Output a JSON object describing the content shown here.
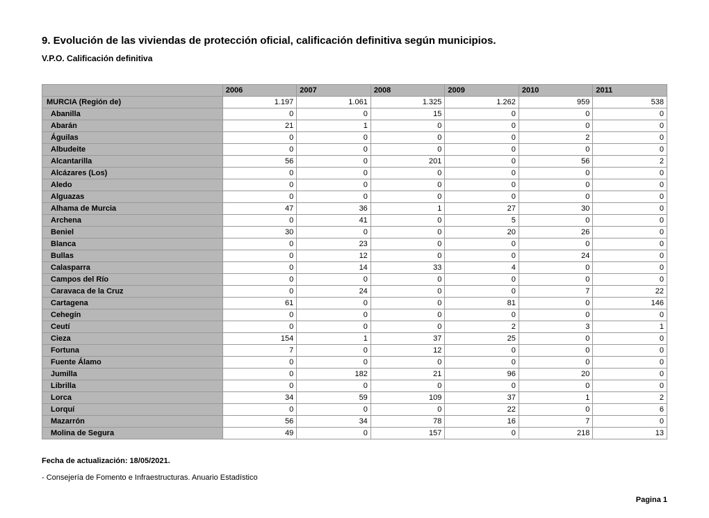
{
  "title": "9. Evolución de las viviendas de protección oficial, calificación definitiva según municipios.",
  "subtitle": "V.P.O. Calificación definitiva",
  "table": {
    "columns": [
      "2006",
      "2007",
      "2008",
      "2009",
      "2010",
      "2011"
    ],
    "rows": [
      {
        "label": "MURCIA (Región de)",
        "indent": false,
        "values": [
          "1.197",
          "1.061",
          "1.325",
          "1.262",
          "959",
          "538"
        ]
      },
      {
        "label": "Abanilla",
        "indent": true,
        "values": [
          "0",
          "0",
          "15",
          "0",
          "0",
          "0"
        ]
      },
      {
        "label": "Abarán",
        "indent": true,
        "values": [
          "21",
          "1",
          "0",
          "0",
          "0",
          "0"
        ]
      },
      {
        "label": "Águilas",
        "indent": true,
        "values": [
          "0",
          "0",
          "0",
          "0",
          "2",
          "0"
        ]
      },
      {
        "label": "Albudeite",
        "indent": true,
        "values": [
          "0",
          "0",
          "0",
          "0",
          "0",
          "0"
        ]
      },
      {
        "label": "Alcantarilla",
        "indent": true,
        "values": [
          "56",
          "0",
          "201",
          "0",
          "56",
          "2"
        ]
      },
      {
        "label": "Alcázares (Los)",
        "indent": true,
        "values": [
          "0",
          "0",
          "0",
          "0",
          "0",
          "0"
        ]
      },
      {
        "label": "Aledo",
        "indent": true,
        "values": [
          "0",
          "0",
          "0",
          "0",
          "0",
          "0"
        ]
      },
      {
        "label": "Alguazas",
        "indent": true,
        "values": [
          "0",
          "0",
          "0",
          "0",
          "0",
          "0"
        ]
      },
      {
        "label": "Alhama de Murcia",
        "indent": true,
        "values": [
          "47",
          "36",
          "1",
          "27",
          "30",
          "0"
        ]
      },
      {
        "label": "Archena",
        "indent": true,
        "values": [
          "0",
          "41",
          "0",
          "5",
          "0",
          "0"
        ]
      },
      {
        "label": "Beniel",
        "indent": true,
        "values": [
          "30",
          "0",
          "0",
          "20",
          "26",
          "0"
        ]
      },
      {
        "label": "Blanca",
        "indent": true,
        "values": [
          "0",
          "23",
          "0",
          "0",
          "0",
          "0"
        ]
      },
      {
        "label": "Bullas",
        "indent": true,
        "values": [
          "0",
          "12",
          "0",
          "0",
          "24",
          "0"
        ]
      },
      {
        "label": "Calasparra",
        "indent": true,
        "values": [
          "0",
          "14",
          "33",
          "4",
          "0",
          "0"
        ]
      },
      {
        "label": "Campos del Río",
        "indent": true,
        "values": [
          "0",
          "0",
          "0",
          "0",
          "0",
          "0"
        ]
      },
      {
        "label": "Caravaca de la Cruz",
        "indent": true,
        "values": [
          "0",
          "24",
          "0",
          "0",
          "7",
          "22"
        ]
      },
      {
        "label": "Cartagena",
        "indent": true,
        "values": [
          "61",
          "0",
          "0",
          "81",
          "0",
          "146"
        ]
      },
      {
        "label": "Cehegín",
        "indent": true,
        "values": [
          "0",
          "0",
          "0",
          "0",
          "0",
          "0"
        ]
      },
      {
        "label": "Ceutí",
        "indent": true,
        "values": [
          "0",
          "0",
          "0",
          "2",
          "3",
          "1"
        ]
      },
      {
        "label": "Cieza",
        "indent": true,
        "values": [
          "154",
          "1",
          "37",
          "25",
          "0",
          "0"
        ]
      },
      {
        "label": "Fortuna",
        "indent": true,
        "values": [
          "7",
          "0",
          "12",
          "0",
          "0",
          "0"
        ]
      },
      {
        "label": "Fuente Álamo",
        "indent": true,
        "values": [
          "0",
          "0",
          "0",
          "0",
          "0",
          "0"
        ]
      },
      {
        "label": "Jumilla",
        "indent": true,
        "values": [
          "0",
          "182",
          "21",
          "96",
          "20",
          "0"
        ]
      },
      {
        "label": "Librilla",
        "indent": true,
        "values": [
          "0",
          "0",
          "0",
          "0",
          "0",
          "0"
        ]
      },
      {
        "label": "Lorca",
        "indent": true,
        "values": [
          "34",
          "59",
          "109",
          "37",
          "1",
          "2"
        ]
      },
      {
        "label": "Lorquí",
        "indent": true,
        "values": [
          "0",
          "0",
          "0",
          "22",
          "0",
          "6"
        ]
      },
      {
        "label": "Mazarrón",
        "indent": true,
        "values": [
          "56",
          "34",
          "78",
          "16",
          "7",
          "0"
        ]
      },
      {
        "label": "Molina de Segura",
        "indent": true,
        "values": [
          "49",
          "0",
          "157",
          "0",
          "218",
          "13"
        ]
      }
    ]
  },
  "footer": {
    "date_label": "Fecha de actualización: 18/05/2021.",
    "source": "- Consejería de Fomento e Infraestructuras. Anuario Estadístico",
    "page": "Pagina 1"
  }
}
